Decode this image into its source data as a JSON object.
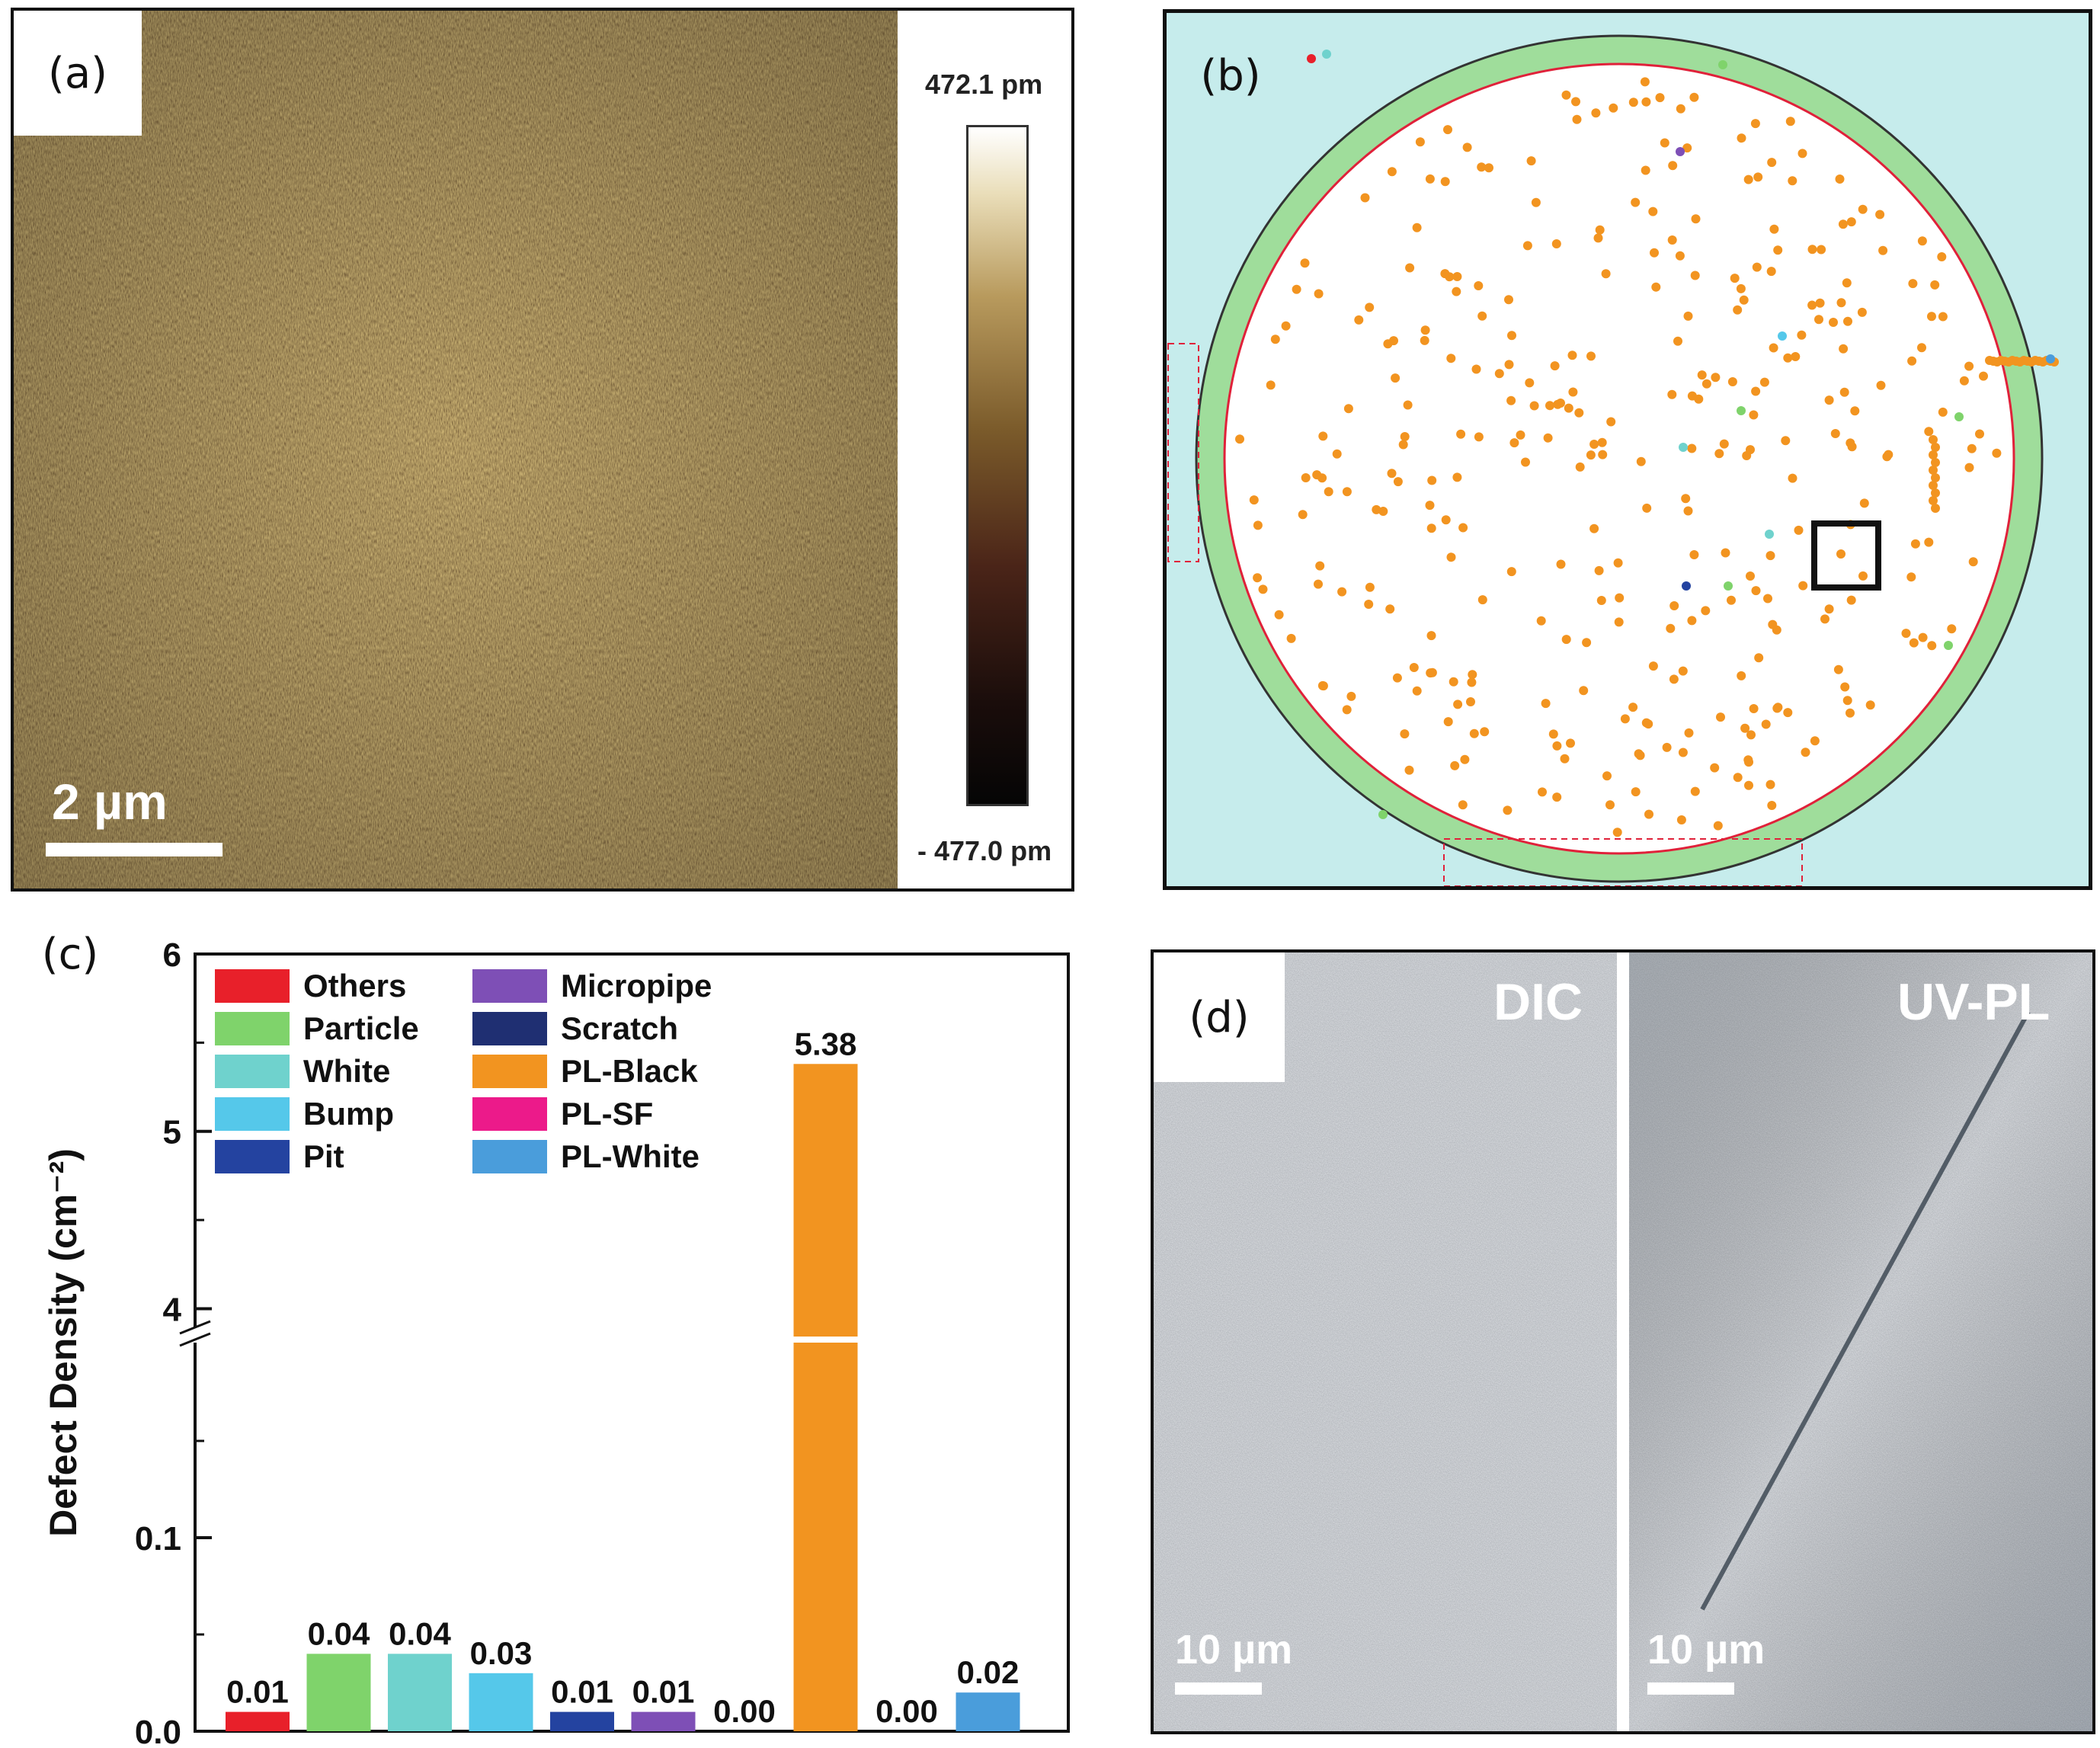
{
  "panels": {
    "a": {
      "label": "(a)",
      "colorbar_max": "472.1 pm",
      "colorbar_min": "- 477.0 pm",
      "scale_bar": "2 µm"
    },
    "b": {
      "label": "(b)"
    },
    "c": {
      "label": "(c)"
    },
    "d": {
      "label": "(d)",
      "left_title": "DIC",
      "right_title": "UV-PL",
      "left_scale": "10 µm",
      "right_scale": "10 µm"
    }
  },
  "chart_data": {
    "type": "bar",
    "ylabel": "Defect Density (cm⁻²)",
    "y_axis_break": true,
    "y_ticks_lower": [
      "0.0",
      "0.1"
    ],
    "y_ticks_upper": [
      "4",
      "5",
      "6"
    ],
    "ylim_lower": [
      0,
      0.2
    ],
    "ylim_upper": [
      3.8,
      6
    ],
    "categories": [
      "Others",
      "Particle",
      "White",
      "Bump",
      "Pit",
      "Micropipe",
      "Scratch",
      "PL-Black",
      "PL-SF",
      "PL-White"
    ],
    "values": [
      0.01,
      0.04,
      0.04,
      0.03,
      0.01,
      0.01,
      0.0,
      5.38,
      0.0,
      0.02
    ],
    "value_labels": [
      "0.01",
      "0.04",
      "0.04",
      "0.03",
      "0.01",
      "0.01",
      "0.00",
      "5.38",
      "0.00",
      "0.02"
    ],
    "colors": [
      "#e8202a",
      "#7fd36b",
      "#6fd2cd",
      "#55c8ea",
      "#2443a0",
      "#7e4fb6",
      "#1f2f72",
      "#f29420",
      "#ec1a8a",
      "#4a9ddb"
    ],
    "legend_position": "top-left, two columns"
  }
}
